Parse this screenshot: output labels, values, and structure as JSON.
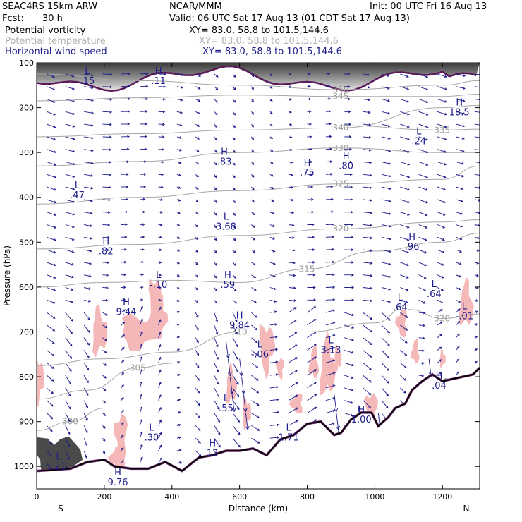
{
  "header": {
    "model": "SEAC4RS 15km ARW",
    "org": "NCAR/MMM",
    "init": "Init: 00 UTC Fri 16 Aug 13",
    "fcst_label": "Fcst:",
    "fcst_value": "30 h",
    "valid": "Valid: 06 UTC Sat 17 Aug 13 (01 CDT Sat 17 Aug 13)",
    "fields": [
      {
        "name": "Potential vorticity",
        "xy": "XY=  83.0, 58.8 to 101.5,144.6",
        "color": "#000000"
      },
      {
        "name": "Potential temperature",
        "xy": "XY=  83.0, 58.8 to 101.5,144.6",
        "color": "#b4b4b4"
      },
      {
        "name": "Horizontal wind speed",
        "xy": "XY=  83.0, 58.8 to 101.5,144.6",
        "color": "#1c1c8c"
      }
    ]
  },
  "chart_data": {
    "type": "cross-section",
    "xlabel": "Distance (km)",
    "ylabel": "Pressure (hPa)",
    "x_ticks": [
      "0",
      "200",
      "400",
      "600",
      "800",
      "1000",
      "1200"
    ],
    "x_tick_values": [
      0,
      200,
      400,
      600,
      800,
      1000,
      1200
    ],
    "y_ticks": [
      "100",
      "200",
      "300",
      "400",
      "500",
      "600",
      "700",
      "800",
      "900",
      "1000"
    ],
    "y_tick_values": [
      100,
      200,
      300,
      400,
      500,
      600,
      700,
      800,
      900,
      1000
    ],
    "xlim": [
      0,
      1310
    ],
    "ylim": [
      1050,
      100
    ],
    "y_scale": "linear-pressure",
    "endpoints": {
      "left": "S",
      "right": "N"
    },
    "theta_isentropes": [
      {
        "label": "350",
        "points": [
          [
            0,
            125
          ],
          [
            300,
            140
          ],
          [
            600,
            150
          ],
          [
            900,
            160
          ],
          [
            1200,
            150
          ],
          [
            1310,
            140
          ]
        ]
      },
      {
        "label": "345",
        "points": [
          [
            0,
            185
          ],
          [
            300,
            178
          ],
          [
            600,
            172
          ],
          [
            900,
            175
          ],
          [
            1200,
            175
          ],
          [
            1310,
            170
          ]
        ]
      },
      {
        "label": "340",
        "points": [
          [
            0,
            265
          ],
          [
            300,
            258
          ],
          [
            600,
            250
          ],
          [
            900,
            245
          ],
          [
            1200,
            200
          ],
          [
            1310,
            195
          ]
        ]
      },
      {
        "label": "335",
        "points": [
          [
            900,
            240
          ],
          [
            1200,
            250
          ],
          [
            1310,
            248
          ]
        ]
      },
      {
        "label": "330",
        "points": [
          [
            0,
            330
          ],
          [
            300,
            320
          ],
          [
            600,
            300
          ],
          [
            900,
            290
          ],
          [
            1200,
            300
          ],
          [
            1310,
            300
          ]
        ]
      },
      {
        "label": "325",
        "points": [
          [
            0,
            415
          ],
          [
            300,
            400
          ],
          [
            600,
            385
          ],
          [
            900,
            370
          ],
          [
            1200,
            360
          ],
          [
            1310,
            330
          ]
        ]
      },
      {
        "label": "320",
        "points": [
          [
            0,
            515
          ],
          [
            300,
            505
          ],
          [
            600,
            485
          ],
          [
            900,
            470
          ],
          [
            1200,
            455
          ],
          [
            1310,
            450
          ]
        ]
      },
      {
        "label": "315",
        "points": [
          [
            0,
            600
          ],
          [
            200,
            590
          ],
          [
            400,
            585
          ],
          [
            600,
            590
          ],
          [
            800,
            560
          ],
          [
            1000,
            520
          ],
          [
            1200,
            500
          ],
          [
            1310,
            480
          ]
        ]
      },
      {
        "label": "320",
        "points": [
          [
            1100,
            650
          ],
          [
            1200,
            670
          ],
          [
            1310,
            660
          ]
        ]
      },
      {
        "label": "310",
        "points": [
          [
            0,
            775
          ],
          [
            200,
            760
          ],
          [
            400,
            745
          ],
          [
            600,
            700
          ],
          [
            800,
            700
          ],
          [
            1000,
            680
          ],
          [
            1100,
            640
          ]
        ]
      },
      {
        "label": "305",
        "points": [
          [
            0,
            850
          ],
          [
            150,
            830
          ],
          [
            300,
            780
          ],
          [
            400,
            770
          ]
        ]
      },
      {
        "label": "300",
        "points": [
          [
            0,
            920
          ],
          [
            100,
            900
          ],
          [
            200,
            870
          ]
        ]
      }
    ],
    "terrain_pressure": [
      [
        0,
        1010
      ],
      [
        100,
        1005
      ],
      [
        150,
        990
      ],
      [
        200,
        985
      ],
      [
        230,
        1000
      ],
      [
        280,
        1005
      ],
      [
        330,
        1005
      ],
      [
        380,
        990
      ],
      [
        430,
        1010
      ],
      [
        480,
        980
      ],
      [
        520,
        975
      ],
      [
        560,
        965
      ],
      [
        600,
        965
      ],
      [
        640,
        960
      ],
      [
        680,
        975
      ],
      [
        720,
        940
      ],
      [
        760,
        930
      ],
      [
        800,
        905
      ],
      [
        840,
        900
      ],
      [
        860,
        915
      ],
      [
        880,
        930
      ],
      [
        900,
        925
      ],
      [
        930,
        895
      ],
      [
        960,
        880
      ],
      [
        990,
        880
      ],
      [
        1010,
        910
      ],
      [
        1040,
        890
      ],
      [
        1060,
        870
      ],
      [
        1090,
        860
      ],
      [
        1110,
        830
      ],
      [
        1140,
        810
      ],
      [
        1170,
        795
      ],
      [
        1200,
        810
      ],
      [
        1230,
        805
      ],
      [
        1260,
        800
      ],
      [
        1290,
        795
      ],
      [
        1310,
        780
      ]
    ],
    "extrema": [
      {
        "kind": "L",
        "value": ".15",
        "x": 150,
        "p": 125
      },
      {
        "kind": "H",
        "value": ".11",
        "x": 360,
        "p": 125
      },
      {
        "kind": "H",
        "value": "18.5",
        "x": 1250,
        "p": 195
      },
      {
        "kind": "L",
        "value": ".24",
        "x": 1130,
        "p": 260
      },
      {
        "kind": "H",
        "value": ".83",
        "x": 555,
        "p": 305
      },
      {
        "kind": "H",
        "value": ".75",
        "x": 800,
        "p": 330
      },
      {
        "kind": "H",
        "value": ".80",
        "x": 915,
        "p": 315
      },
      {
        "kind": "L",
        "value": ".47",
        "x": 120,
        "p": 380
      },
      {
        "kind": "L",
        "value": "3.68",
        "x": 560,
        "p": 450
      },
      {
        "kind": "H",
        "value": ".82",
        "x": 205,
        "p": 505
      },
      {
        "kind": "H",
        "value": ".96",
        "x": 1110,
        "p": 495
      },
      {
        "kind": "L",
        "value": "-.10",
        "x": 360,
        "p": 580
      },
      {
        "kind": "H",
        "value": ".59",
        "x": 565,
        "p": 580
      },
      {
        "kind": "H",
        "value": "9.44",
        "x": 265,
        "p": 640
      },
      {
        "kind": "L",
        "value": ".64",
        "x": 1175,
        "p": 600
      },
      {
        "kind": "L",
        "value": ".64",
        "x": 1075,
        "p": 630
      },
      {
        "kind": "H",
        "value": "9.84",
        "x": 600,
        "p": 670
      },
      {
        "kind": "L",
        "value": "-.01",
        "x": 1265,
        "p": 650
      },
      {
        "kind": "L",
        "value": "-.06",
        "x": 660,
        "p": 735
      },
      {
        "kind": "L",
        "value": "3.13",
        "x": 870,
        "p": 725
      },
      {
        "kind": "H",
        "value": ".04",
        "x": 1190,
        "p": 805
      },
      {
        "kind": "L",
        "value": ".55",
        "x": 560,
        "p": 855
      },
      {
        "kind": "L",
        "value": ".30",
        "x": 340,
        "p": 920
      },
      {
        "kind": "L",
        "value": "1.71",
        "x": 745,
        "p": 920
      },
      {
        "kind": "H",
        "value": "1.00",
        "x": 960,
        "p": 880
      },
      {
        "kind": "H",
        "value": "12",
        "x": 520,
        "p": 955
      },
      {
        "kind": "L",
        "value": ".21",
        "x": 65,
        "p": 985
      },
      {
        "kind": "H",
        "value": "9.76",
        "x": 240,
        "p": 1020
      }
    ],
    "pv_shaded_regions": [
      {
        "level": "positive-anomaly",
        "color": "#f4b8b8",
        "center": [
          250,
          700
        ]
      },
      {
        "level": "positive-anomaly",
        "color": "#f4b8b8",
        "center": [
          690,
          740
        ]
      },
      {
        "level": "positive-anomaly",
        "color": "#f4b8b8",
        "center": [
          1150,
          680
        ]
      }
    ],
    "stratosphere_pv_band_p": [
      100,
      165
    ],
    "grid": false,
    "colors": {
      "pv_high": "#555555",
      "pv_contour": "#5a1a5a",
      "pv_positive_fill": "#f4b8b8",
      "theta": "#a8a8a8",
      "wind": "#1c1c8c",
      "terrain": "#000000"
    }
  }
}
